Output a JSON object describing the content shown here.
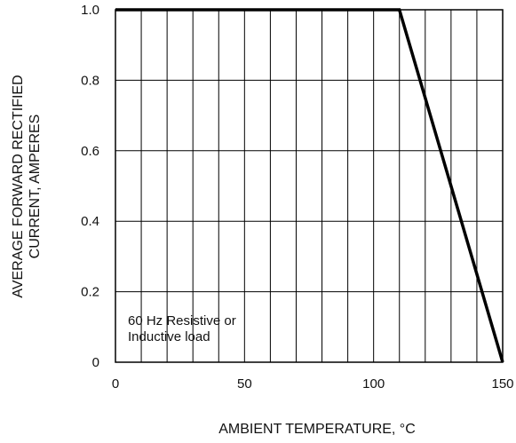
{
  "chart_data": {
    "type": "line",
    "xlabel": "AMBIENT TEMPERATURE, °C",
    "ylabel_lines": [
      "AVERAGE FORWARD RECTIFIED",
      "CURRENT, AMPERES"
    ],
    "xlim": [
      0,
      150
    ],
    "ylim": [
      0,
      1.0
    ],
    "x_ticks": [
      0,
      50,
      100,
      150
    ],
    "x_tick_labels": [
      "0",
      "50",
      "100",
      "150"
    ],
    "y_ticks": [
      0,
      0.2,
      0.4,
      0.6,
      0.8,
      1.0
    ],
    "y_tick_labels": [
      "0",
      "0.2",
      "0.4",
      "0.6",
      "0.8",
      "1.0"
    ],
    "grid": true,
    "grid_x_step": 10,
    "grid_y_step": 0.2,
    "annotation_lines": [
      "60 Hz Resistive or",
      "Inductive load"
    ],
    "series": [
      {
        "x": [
          0,
          110,
          150
        ],
        "y": [
          1.0,
          1.0,
          0
        ]
      }
    ]
  }
}
